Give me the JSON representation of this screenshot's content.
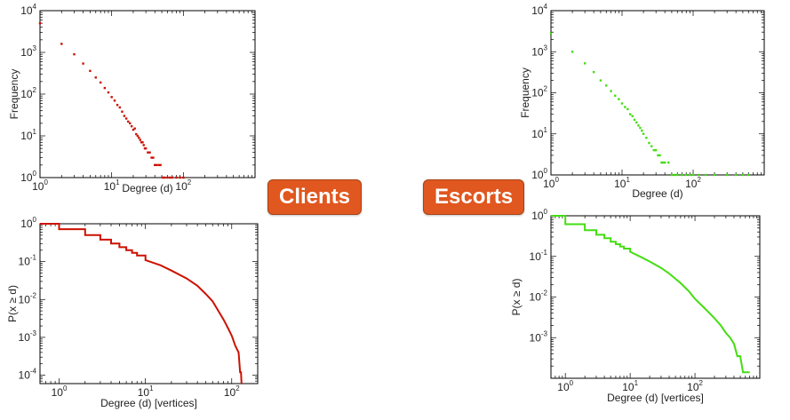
{
  "badges": {
    "clients": "Clients",
    "escorts": "Escorts",
    "color": "#e0571f"
  },
  "chart_data": [
    {
      "id": "clients-frequency",
      "type": "scatter",
      "xlabel": "Degree (d)",
      "ylabel": "Frequency",
      "xscale": "log",
      "yscale": "log",
      "xlim": [
        1,
        1000
      ],
      "ylim": [
        1,
        10000
      ],
      "color": "#cc1100",
      "xticks": [
        {
          "v": 1,
          "b": "10",
          "e": "0"
        },
        {
          "v": 10,
          "b": "10",
          "e": "1"
        },
        {
          "v": 100,
          "b": "10",
          "e": "2"
        }
      ],
      "yticks": [
        {
          "v": 1,
          "b": "10",
          "e": "0"
        },
        {
          "v": 10,
          "b": "10",
          "e": "1"
        },
        {
          "v": 100,
          "b": "10",
          "e": "2"
        },
        {
          "v": 1000,
          "b": "10",
          "e": "3"
        },
        {
          "v": 10000,
          "b": "10",
          "e": "4"
        }
      ],
      "points": [
        [
          1,
          5000
        ],
        [
          2,
          1600
        ],
        [
          3,
          900
        ],
        [
          4,
          540
        ],
        [
          5,
          360
        ],
        [
          6,
          250
        ],
        [
          7,
          190
        ],
        [
          8,
          140
        ],
        [
          9,
          110
        ],
        [
          10,
          85
        ],
        [
          11,
          70
        ],
        [
          12,
          55
        ],
        [
          13,
          48
        ],
        [
          14,
          38
        ],
        [
          15,
          30
        ],
        [
          16,
          26
        ],
        [
          17,
          22
        ],
        [
          18,
          20
        ],
        [
          19,
          17
        ],
        [
          20,
          14
        ],
        [
          21,
          15
        ],
        [
          22,
          11
        ],
        [
          23,
          10
        ],
        [
          24,
          9
        ],
        [
          25,
          8
        ],
        [
          26,
          7
        ],
        [
          27,
          7
        ],
        [
          28,
          6
        ],
        [
          29,
          5
        ],
        [
          30,
          5
        ],
        [
          32,
          4
        ],
        [
          34,
          4
        ],
        [
          36,
          3
        ],
        [
          38,
          3
        ],
        [
          40,
          2
        ],
        [
          42,
          2
        ],
        [
          45,
          2
        ],
        [
          48,
          2
        ],
        [
          52,
          1
        ],
        [
          55,
          1
        ],
        [
          60,
          1
        ],
        [
          65,
          1
        ],
        [
          70,
          1
        ],
        [
          80,
          1
        ],
        [
          90,
          1
        ],
        [
          100,
          1
        ]
      ]
    },
    {
      "id": "clients-ccdf",
      "type": "line",
      "xlabel": "Degree (d) [vertices]",
      "ylabel": "P(x ≥ d)",
      "xscale": "log",
      "yscale": "log",
      "xlim": [
        0.6,
        200
      ],
      "ylim": [
        6e-05,
        1
      ],
      "color": "#cc1100",
      "xticks": [
        {
          "v": 1,
          "b": "10",
          "e": "0"
        },
        {
          "v": 10,
          "b": "10",
          "e": "1"
        },
        {
          "v": 100,
          "b": "10",
          "e": "2"
        }
      ],
      "yticks": [
        {
          "v": 0.0001,
          "b": "10",
          "e": "-4"
        },
        {
          "v": 0.001,
          "b": "10",
          "e": "-3"
        },
        {
          "v": 0.01,
          "b": "10",
          "e": "-2"
        },
        {
          "v": 0.1,
          "b": "10",
          "e": "-1"
        },
        {
          "v": 1,
          "b": "10",
          "e": "0"
        }
      ],
      "points": [
        [
          0.6,
          1
        ],
        [
          1,
          1
        ],
        [
          1,
          0.72
        ],
        [
          2,
          0.72
        ],
        [
          2,
          0.5
        ],
        [
          3,
          0.5
        ],
        [
          3,
          0.38
        ],
        [
          4,
          0.38
        ],
        [
          4,
          0.3
        ],
        [
          5,
          0.3
        ],
        [
          5,
          0.24
        ],
        [
          6,
          0.24
        ],
        [
          6,
          0.2
        ],
        [
          7,
          0.2
        ],
        [
          7,
          0.17
        ],
        [
          8,
          0.17
        ],
        [
          8,
          0.145
        ],
        [
          10,
          0.145
        ],
        [
          10,
          0.11
        ],
        [
          15,
          0.08
        ],
        [
          20,
          0.058
        ],
        [
          30,
          0.036
        ],
        [
          40,
          0.023
        ],
        [
          50,
          0.014
        ],
        [
          60,
          0.009
        ],
        [
          70,
          0.005
        ],
        [
          80,
          0.003
        ],
        [
          90,
          0.0018
        ],
        [
          100,
          0.0011
        ],
        [
          110,
          0.0006
        ],
        [
          120,
          0.0004
        ],
        [
          125,
          0.00012
        ],
        [
          128,
          0.00012
        ],
        [
          130,
          6e-05
        ]
      ]
    },
    {
      "id": "escorts-frequency",
      "type": "scatter",
      "xlabel": "Degree (d)",
      "ylabel": "Frequency",
      "xscale": "log",
      "yscale": "log",
      "xlim": [
        1,
        1000
      ],
      "ylim": [
        1,
        10000
      ],
      "color": "#44dd11",
      "xticks": [
        {
          "v": 1,
          "b": "10",
          "e": "0"
        },
        {
          "v": 10,
          "b": "10",
          "e": "1"
        },
        {
          "v": 100,
          "b": "10",
          "e": "2"
        }
      ],
      "yticks": [
        {
          "v": 1,
          "b": "10",
          "e": "0"
        },
        {
          "v": 10,
          "b": "10",
          "e": "1"
        },
        {
          "v": 100,
          "b": "10",
          "e": "2"
        },
        {
          "v": 1000,
          "b": "10",
          "e": "3"
        },
        {
          "v": 10000,
          "b": "10",
          "e": "4"
        }
      ],
      "points": [
        [
          1,
          2800
        ],
        [
          2,
          1000
        ],
        [
          3,
          520
        ],
        [
          4,
          320
        ],
        [
          5,
          200
        ],
        [
          6,
          150
        ],
        [
          7,
          110
        ],
        [
          8,
          85
        ],
        [
          9,
          70
        ],
        [
          10,
          55
        ],
        [
          11,
          45
        ],
        [
          12,
          40
        ],
        [
          13,
          30
        ],
        [
          14,
          27
        ],
        [
          15,
          22
        ],
        [
          16,
          19
        ],
        [
          17,
          16
        ],
        [
          18,
          14
        ],
        [
          19,
          12
        ],
        [
          20,
          10
        ],
        [
          22,
          8
        ],
        [
          24,
          6
        ],
        [
          26,
          5
        ],
        [
          28,
          4
        ],
        [
          30,
          4
        ],
        [
          32,
          3
        ],
        [
          34,
          3
        ],
        [
          36,
          2
        ],
        [
          38,
          2
        ],
        [
          40,
          2
        ],
        [
          45,
          2
        ],
        [
          50,
          1
        ],
        [
          55,
          1
        ],
        [
          60,
          1
        ],
        [
          70,
          1
        ],
        [
          80,
          1
        ],
        [
          90,
          1
        ],
        [
          100,
          1
        ],
        [
          120,
          1
        ],
        [
          150,
          1
        ],
        [
          200,
          1
        ],
        [
          300,
          1
        ],
        [
          400,
          1
        ],
        [
          500,
          1
        ],
        [
          600,
          1
        ]
      ]
    },
    {
      "id": "escorts-ccdf",
      "type": "line",
      "xlabel": "Degree (d) [vertices]",
      "ylabel": "P(x ≥ d)",
      "xscale": "log",
      "yscale": "log",
      "xlim": [
        0.6,
        1000
      ],
      "ylim": [
        0.0001,
        1
      ],
      "color": "#44dd11",
      "xticks": [
        {
          "v": 1,
          "b": "10",
          "e": "0"
        },
        {
          "v": 10,
          "b": "10",
          "e": "1"
        },
        {
          "v": 100,
          "b": "10",
          "e": "2"
        }
      ],
      "yticks": [
        {
          "v": 0.001,
          "b": "10",
          "e": "-3"
        },
        {
          "v": 0.01,
          "b": "10",
          "e": "-2"
        },
        {
          "v": 0.1,
          "b": "10",
          "e": "-1"
        },
        {
          "v": 1,
          "b": "10",
          "e": "0"
        }
      ],
      "points": [
        [
          0.6,
          1
        ],
        [
          1,
          1
        ],
        [
          1,
          0.62
        ],
        [
          2,
          0.62
        ],
        [
          2,
          0.44
        ],
        [
          3,
          0.44
        ],
        [
          3,
          0.34
        ],
        [
          4,
          0.34
        ],
        [
          4,
          0.28
        ],
        [
          5,
          0.28
        ],
        [
          5,
          0.23
        ],
        [
          6,
          0.23
        ],
        [
          6,
          0.2
        ],
        [
          7,
          0.2
        ],
        [
          7,
          0.175
        ],
        [
          8,
          0.175
        ],
        [
          8,
          0.155
        ],
        [
          10,
          0.155
        ],
        [
          10,
          0.13
        ],
        [
          15,
          0.095
        ],
        [
          20,
          0.075
        ],
        [
          30,
          0.052
        ],
        [
          40,
          0.038
        ],
        [
          50,
          0.028
        ],
        [
          60,
          0.022
        ],
        [
          80,
          0.014
        ],
        [
          100,
          0.009
        ],
        [
          150,
          0.0048
        ],
        [
          200,
          0.003
        ],
        [
          250,
          0.002
        ],
        [
          300,
          0.0013
        ],
        [
          350,
          0.001
        ],
        [
          400,
          0.0007
        ],
        [
          450,
          0.00035
        ],
        [
          500,
          0.00035
        ],
        [
          550,
          0.00014
        ],
        [
          700,
          0.00014
        ]
      ]
    }
  ]
}
